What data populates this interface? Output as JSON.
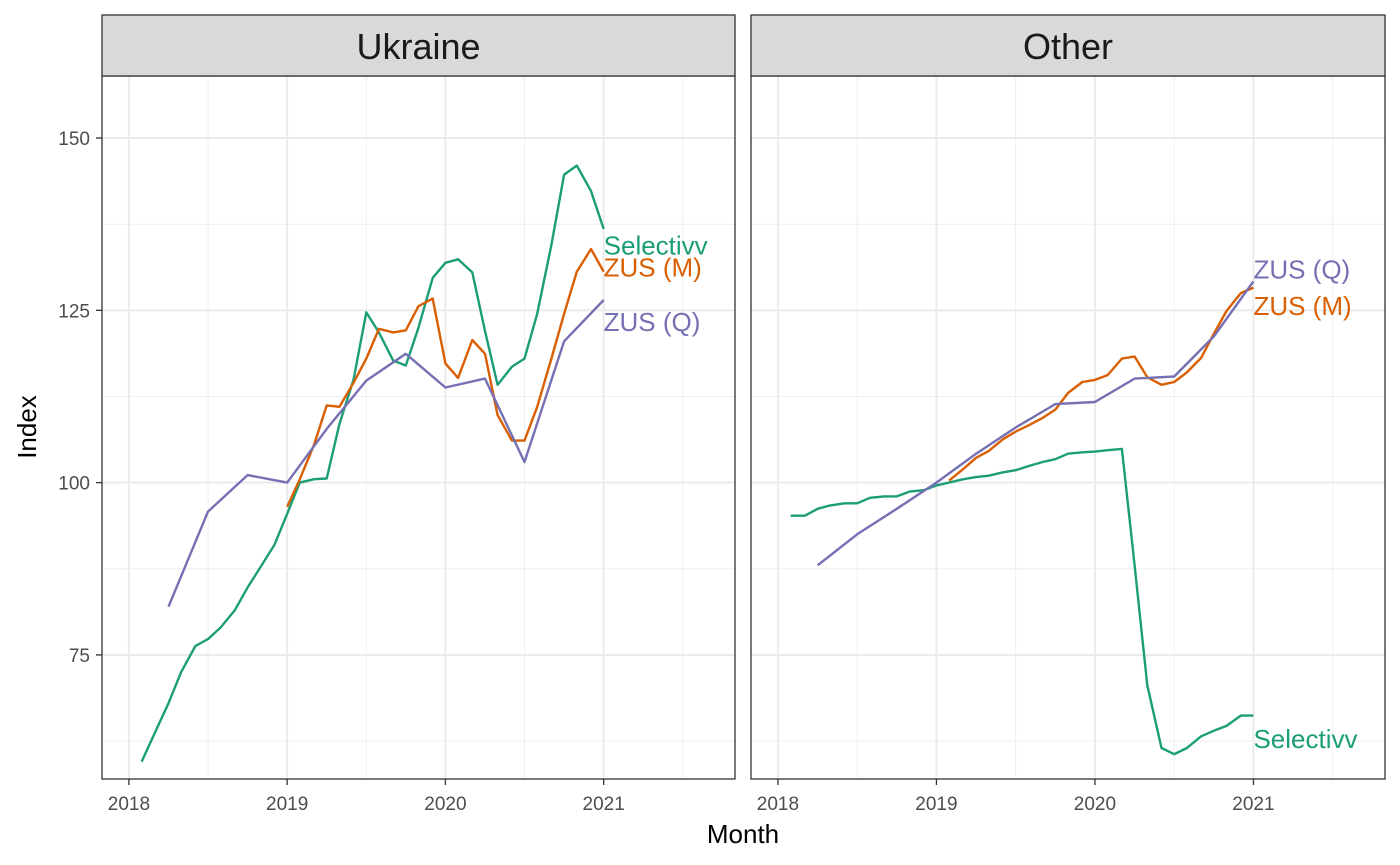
{
  "chart_data": {
    "type": "line",
    "xlabel": "Month",
    "ylabel": "Index",
    "xlim": [
      2017.83,
      2021.83
    ],
    "ylim": [
      57,
      159
    ],
    "x_ticks": [
      2018,
      2019,
      2020,
      2021
    ],
    "x_tick_labels": [
      "2018",
      "2019",
      "2020",
      "2021"
    ],
    "y_ticks": [
      75,
      100,
      125,
      150
    ],
    "y_tick_labels": [
      "75",
      "100",
      "125",
      "150"
    ],
    "grid": true,
    "legend": "none (series labelled directly at line ends)",
    "series_colors": {
      "Selectivv": "#1b9e77",
      "ZUS (M)": "#d95f02",
      "ZUS (Q)": "#7570b3"
    },
    "panels": [
      {
        "title": "Ukraine",
        "series": [
          {
            "name": "Selectivv",
            "label": "Selectivv",
            "color": "#1b9e77",
            "x": [
              2018.08,
              2018.17,
              2018.25,
              2018.33,
              2018.42,
              2018.5,
              2018.58,
              2018.67,
              2018.75,
              2018.83,
              2018.92,
              2019.0,
              2019.08,
              2019.17,
              2019.25,
              2019.33,
              2019.42,
              2019.5,
              2019.58,
              2019.67,
              2019.75,
              2019.83,
              2019.92,
              2020.0,
              2020.08,
              2020.17,
              2020.25,
              2020.33,
              2020.42,
              2020.5,
              2020.58,
              2020.67,
              2020.75,
              2020.83,
              2020.92,
              2021.0
            ],
            "y": [
              59.5,
              64,
              68,
              72.5,
              76.3,
              77.3,
              79,
              81.5,
              84.8,
              87.7,
              91,
              95.5,
              100,
              100.5,
              100.6,
              108.5,
              115,
              124.7,
              121.8,
              117.7,
              117,
              122.5,
              129.7,
              131.9,
              132.4,
              130.5,
              122,
              114.2,
              116.8,
              118,
              124.5,
              134.5,
              144.7,
              146,
              142.3,
              136.8
            ]
          },
          {
            "name": "ZUS (M)",
            "label": "ZUS (M)",
            "color": "#d95f02",
            "x": [
              2019.0,
              2019.08,
              2019.17,
              2019.25,
              2019.33,
              2019.42,
              2019.5,
              2019.58,
              2019.67,
              2019.75,
              2019.83,
              2019.92,
              2020.0,
              2020.08,
              2020.17,
              2020.25,
              2020.33,
              2020.42,
              2020.5,
              2020.58,
              2020.67,
              2020.75,
              2020.83,
              2020.92,
              2021.0
            ],
            "y": [
              96.5,
              100.5,
              105.5,
              111.2,
              111,
              114.5,
              118,
              122.3,
              121.8,
              122.1,
              125.6,
              126.7,
              117.3,
              115.2,
              120.7,
              118.7,
              109.8,
              106.1,
              106.1,
              111,
              118,
              124.5,
              130.6,
              133.9,
              130.6
            ]
          },
          {
            "name": "ZUS (Q)",
            "label": "ZUS (Q)",
            "color": "#7570b3",
            "x": [
              2018.25,
              2018.5,
              2018.75,
              2019.0,
              2019.25,
              2019.5,
              2019.75,
              2020.0,
              2020.25,
              2020.5,
              2020.75,
              2021.0
            ],
            "y": [
              82,
              95.8,
              101.1,
              100,
              107.8,
              114.8,
              118.7,
              113.8,
              115.1,
              103,
              120.5,
              126.5
            ]
          }
        ],
        "labels_at_end": [
          {
            "series": "Selectivv",
            "text": "Selectivv",
            "x": 2021.0,
            "y": 134.4
          },
          {
            "series": "ZUS (M)",
            "text": "ZUS (M)",
            "x": 2021.0,
            "y": 131.2
          },
          {
            "series": "ZUS (Q)",
            "text": "ZUS (Q)",
            "x": 2021.0,
            "y": 123.3
          }
        ]
      },
      {
        "title": "Other",
        "series": [
          {
            "name": "Selectivv",
            "label": "Selectivv",
            "color": "#1b9e77",
            "x": [
              2018.08,
              2018.17,
              2018.25,
              2018.33,
              2018.42,
              2018.5,
              2018.58,
              2018.67,
              2018.75,
              2018.83,
              2018.92,
              2019.0,
              2019.08,
              2019.17,
              2019.25,
              2019.33,
              2019.42,
              2019.5,
              2019.58,
              2019.67,
              2019.75,
              2019.83,
              2019.92,
              2020.0,
              2020.08,
              2020.17,
              2020.25,
              2020.33,
              2020.42,
              2020.5,
              2020.58,
              2020.67,
              2020.75,
              2020.83,
              2020.92,
              2021.0
            ],
            "y": [
              95.2,
              95.2,
              96.2,
              96.7,
              97,
              97,
              97.8,
              98,
              98,
              98.7,
              98.9,
              99.6,
              100,
              100.5,
              100.8,
              101,
              101.5,
              101.8,
              102.4,
              103,
              103.4,
              104.2,
              104.4,
              104.5,
              104.7,
              104.9,
              88,
              70.6,
              61.5,
              60.6,
              61.5,
              63.2,
              64,
              64.7,
              66.2,
              66.2
            ]
          },
          {
            "name": "ZUS (M)",
            "label": "ZUS (M)",
            "color": "#d95f02",
            "x": [
              2019.08,
              2019.17,
              2019.25,
              2019.33,
              2019.42,
              2019.5,
              2019.58,
              2019.67,
              2019.75,
              2019.83,
              2019.92,
              2020.0,
              2020.08,
              2020.17,
              2020.25,
              2020.33,
              2020.42,
              2020.5,
              2020.58,
              2020.67,
              2020.75,
              2020.83,
              2020.92,
              2021.0
            ],
            "y": [
              100.3,
              102,
              103.6,
              104.6,
              106.3,
              107.4,
              108.3,
              109.4,
              110.6,
              113,
              114.6,
              114.9,
              115.6,
              118,
              118.3,
              115.3,
              114.2,
              114.6,
              116,
              118.1,
              121.6,
              124.9,
              127.5,
              128.3
            ]
          },
          {
            "name": "ZUS (Q)",
            "label": "ZUS (Q)",
            "color": "#7570b3",
            "x": [
              2018.25,
              2018.5,
              2018.75,
              2019.0,
              2019.25,
              2019.5,
              2019.75,
              2020.0,
              2020.25,
              2020.5,
              2020.75,
              2021.0
            ],
            "y": [
              88,
              92.5,
              96.2,
              100,
              104.2,
              108,
              111.4,
              111.7,
              115.1,
              115.4,
              121.2,
              129.2
            ]
          }
        ],
        "labels_at_end": [
          {
            "series": "ZUS (Q)",
            "text": "ZUS (Q)",
            "x": 2021.0,
            "y": 130.9
          },
          {
            "series": "ZUS (M)",
            "text": "ZUS (M)",
            "x": 2021.0,
            "y": 125.6
          },
          {
            "series": "Selectivv",
            "text": "Selectivv",
            "x": 2021.0,
            "y": 62.8
          }
        ]
      }
    ]
  }
}
